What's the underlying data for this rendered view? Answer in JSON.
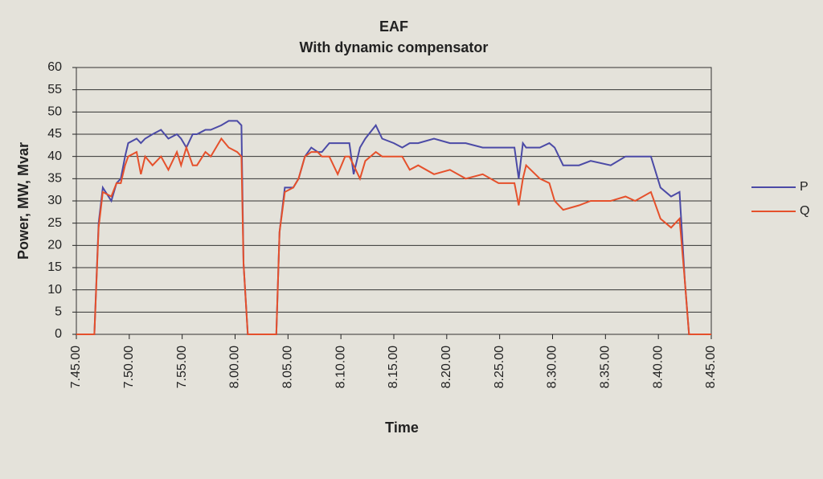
{
  "chart_data": {
    "type": "line",
    "title": "EAF",
    "subtitle": "With dynamic compensator",
    "x_label": "Time",
    "y_label": "Power, MW, Mvar",
    "x": [
      465.0,
      466.7,
      467.1,
      467.5,
      468.3,
      468.8,
      469.2,
      469.6,
      469.9,
      470.7,
      471.1,
      471.5,
      472.2,
      473.0,
      473.7,
      474.5,
      474.9,
      475.4,
      476.0,
      476.4,
      477.2,
      477.7,
      478.7,
      479.4,
      480.2,
      480.6,
      480.8,
      481.2,
      483.9,
      484.2,
      484.7,
      485.5,
      486.0,
      486.6,
      487.2,
      487.8,
      488.2,
      488.9,
      489.7,
      490.4,
      490.8,
      491.2,
      491.8,
      492.3,
      493.3,
      493.9,
      495.0,
      495.8,
      496.5,
      497.3,
      498.8,
      500.3,
      501.8,
      503.4,
      504.9,
      506.4,
      506.8,
      507.2,
      507.5,
      508.8,
      509.7,
      510.2,
      511.0,
      512.5,
      513.6,
      515.5,
      516.9,
      517.8,
      519.3,
      520.2,
      521.2,
      522.0,
      522.5,
      522.9,
      525.0
    ],
    "series": [
      {
        "name": "P",
        "color": "#4b4aa6",
        "values": [
          0,
          0,
          25,
          33,
          30,
          34,
          35,
          40,
          43,
          44,
          43,
          44,
          45,
          46,
          44,
          45,
          44,
          42,
          45,
          45,
          46,
          46,
          47,
          48,
          48,
          47,
          16,
          0,
          0,
          23,
          33,
          33,
          35,
          40,
          42,
          41,
          41,
          43,
          43,
          43,
          43,
          36,
          42,
          44,
          47,
          44,
          43,
          42,
          43,
          43,
          44,
          43,
          43,
          42,
          42,
          42,
          35,
          43,
          42,
          42,
          43,
          42,
          38,
          38,
          39,
          38,
          40,
          40,
          40,
          33,
          31,
          32,
          12,
          0,
          0
        ]
      },
      {
        "name": "Q",
        "color": "#e5502b",
        "values": [
          0,
          0,
          24,
          32,
          31,
          34,
          34,
          38,
          40,
          41,
          36,
          40,
          38,
          40,
          37,
          41,
          38,
          42,
          38,
          38,
          41,
          40,
          44,
          42,
          41,
          40,
          16,
          0,
          0,
          23,
          32,
          33,
          35,
          40,
          41,
          41,
          40,
          40,
          36,
          40,
          40,
          38,
          35,
          39,
          41,
          40,
          40,
          40,
          37,
          38,
          36,
          37,
          35,
          36,
          34,
          34,
          29,
          35,
          38,
          35,
          34,
          30,
          28,
          29,
          30,
          30,
          31,
          30,
          32,
          26,
          24,
          26,
          12,
          0,
          0
        ]
      }
    ],
    "xlim": [
      465,
      525
    ],
    "xticks": [
      {
        "value": 465,
        "label": "7.45.00"
      },
      {
        "value": 470,
        "label": "7.50.00"
      },
      {
        "value": 475,
        "label": "7.55.00"
      },
      {
        "value": 480,
        "label": "8.00.00"
      },
      {
        "value": 485,
        "label": "8.05.00"
      },
      {
        "value": 490,
        "label": "8.10.00"
      },
      {
        "value": 495,
        "label": "8.15.00"
      },
      {
        "value": 500,
        "label": "8.20.00"
      },
      {
        "value": 505,
        "label": "8.25.00"
      },
      {
        "value": 510,
        "label": "8.30.00"
      },
      {
        "value": 515,
        "label": "8.35.00"
      },
      {
        "value": 520,
        "label": "8.40.00"
      },
      {
        "value": 525,
        "label": "8.45.00"
      }
    ],
    "ylim": [
      0,
      60
    ],
    "yticks": [
      0,
      5,
      10,
      15,
      20,
      25,
      30,
      35,
      40,
      45,
      50,
      55,
      60
    ],
    "grid": true,
    "legend": "right"
  }
}
